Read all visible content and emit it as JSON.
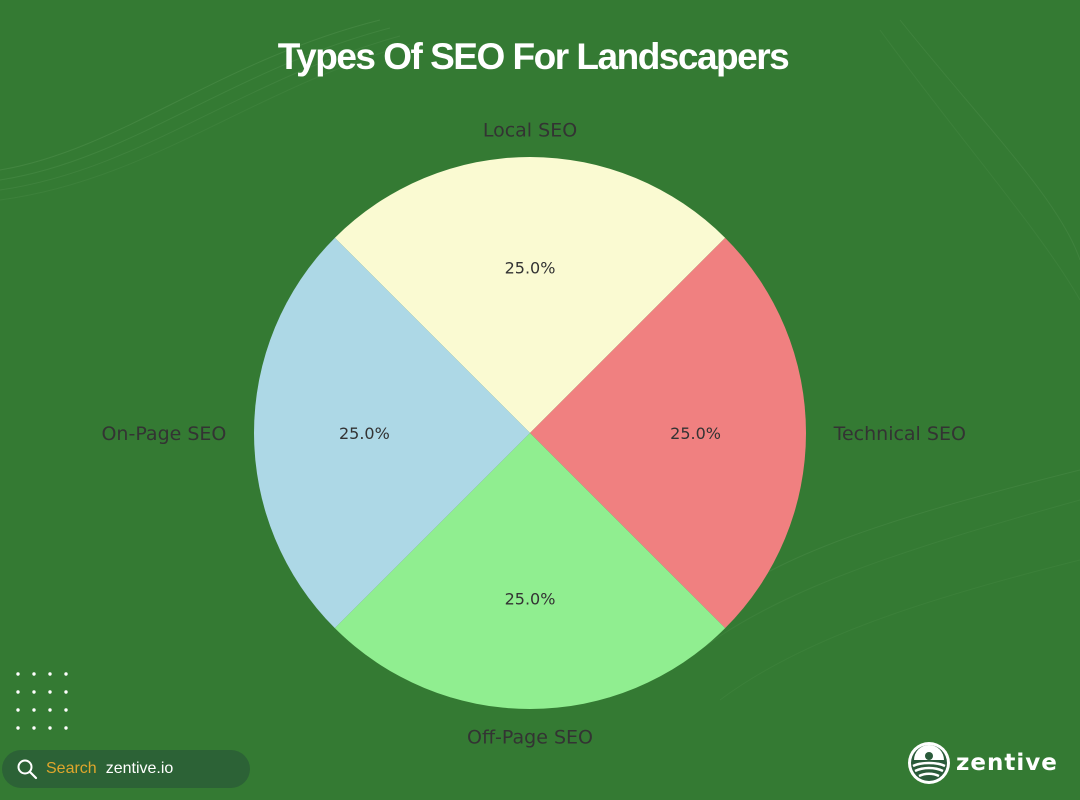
{
  "title": "Types Of SEO For Landscapers",
  "chart_data": {
    "type": "pie",
    "categories": [
      "Local SEO",
      "Technical SEO",
      "Off-Page SEO",
      "On-Page SEO"
    ],
    "values": [
      25.0,
      25.0,
      25.0,
      25.0
    ],
    "data_labels": [
      "25.0%",
      "25.0%",
      "25.0%",
      "25.0%"
    ],
    "colors": [
      "#fafad2",
      "#f08080",
      "#90ee90",
      "#add8e6"
    ],
    "label_color": "#333333",
    "start_angle_deg": 135,
    "direction": "clockwise"
  },
  "colors": {
    "background": "#347a33",
    "search_label": "#e0a62c"
  },
  "footer": {
    "search_label": "Search",
    "search_url": "zentive.io",
    "search_icon": "search-icon",
    "brand": "zentive",
    "brand_icon": "zentive-logo-icon"
  }
}
